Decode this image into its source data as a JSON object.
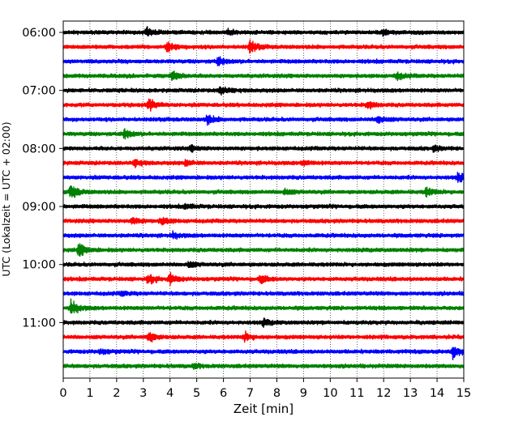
{
  "chart_data": {
    "type": "line",
    "chart_kind": "helicorder",
    "xlabel": "Zeit  [min]",
    "ylabel": "UTC (Lokalzeit = UTC + 02:00)",
    "xlim": [
      0,
      15
    ],
    "x_ticks": [
      "0",
      "1",
      "2",
      "3",
      "4",
      "5",
      "6",
      "7",
      "8",
      "9",
      "10",
      "11",
      "12",
      "13",
      "14",
      "15"
    ],
    "y_tick_labels": [
      "06:00",
      "07:00",
      "08:00",
      "09:00",
      "10:00",
      "11:00"
    ],
    "grid": "vertical dotted lines at each minute",
    "trace_interval_min": 15,
    "trace_colors": [
      "#000000",
      "#ff0000",
      "#0000ff",
      "#008000"
    ],
    "traces": [
      {
        "start": "06:00",
        "color": "#000000",
        "events": [
          {
            "x": 3.15,
            "amp": 1.0
          },
          {
            "x": 6.2,
            "amp": 0.5
          },
          {
            "x": 12.0,
            "amp": 0.6
          }
        ]
      },
      {
        "start": "06:15",
        "color": "#ff0000",
        "events": [
          {
            "x": 3.9,
            "amp": 0.9
          },
          {
            "x": 7.0,
            "amp": 1.2
          }
        ]
      },
      {
        "start": "06:30",
        "color": "#0000ff",
        "events": [
          {
            "x": 5.8,
            "amp": 0.8
          }
        ]
      },
      {
        "start": "06:45",
        "color": "#008000",
        "events": [
          {
            "x": 4.1,
            "amp": 1.1
          },
          {
            "x": 12.5,
            "amp": 0.7
          }
        ]
      },
      {
        "start": "07:00",
        "color": "#000000",
        "events": [
          {
            "x": 5.9,
            "amp": 0.8
          }
        ]
      },
      {
        "start": "07:15",
        "color": "#ff0000",
        "events": [
          {
            "x": 3.2,
            "amp": 1.2
          },
          {
            "x": 11.4,
            "amp": 0.7
          }
        ]
      },
      {
        "start": "07:30",
        "color": "#0000ff",
        "events": [
          {
            "x": 5.4,
            "amp": 0.9
          },
          {
            "x": 11.8,
            "amp": 0.8
          }
        ]
      },
      {
        "start": "07:45",
        "color": "#008000",
        "events": [
          {
            "x": 2.3,
            "amp": 0.9
          }
        ]
      },
      {
        "start": "08:00",
        "color": "#000000",
        "events": [
          {
            "x": 4.8,
            "amp": 0.5
          },
          {
            "x": 13.9,
            "amp": 0.5
          }
        ]
      },
      {
        "start": "08:15",
        "color": "#ff0000",
        "events": [
          {
            "x": 2.7,
            "amp": 0.6
          },
          {
            "x": 4.6,
            "amp": 0.6
          },
          {
            "x": 9.0,
            "amp": 0.5
          }
        ]
      },
      {
        "start": "08:30",
        "color": "#0000ff",
        "events": [
          {
            "x": 14.8,
            "amp": 0.9
          }
        ]
      },
      {
        "start": "08:45",
        "color": "#008000",
        "events": [
          {
            "x": 0.3,
            "amp": 1.4
          },
          {
            "x": 8.3,
            "amp": 0.6
          },
          {
            "x": 13.6,
            "amp": 0.9
          }
        ]
      },
      {
        "start": "09:00",
        "color": "#000000",
        "events": [
          {
            "x": 4.6,
            "amp": 0.5
          }
        ]
      },
      {
        "start": "09:15",
        "color": "#ff0000",
        "events": [
          {
            "x": 2.6,
            "amp": 0.7
          },
          {
            "x": 3.7,
            "amp": 0.8
          }
        ]
      },
      {
        "start": "09:30",
        "color": "#0000ff",
        "events": [
          {
            "x": 4.1,
            "amp": 0.5
          }
        ]
      },
      {
        "start": "09:45",
        "color": "#008000",
        "events": [
          {
            "x": 0.6,
            "amp": 1.3
          }
        ]
      },
      {
        "start": "10:00",
        "color": "#000000",
        "events": [
          {
            "x": 4.7,
            "amp": 0.6
          }
        ]
      },
      {
        "start": "10:15",
        "color": "#ff0000",
        "events": [
          {
            "x": 3.2,
            "amp": 0.9
          },
          {
            "x": 4.0,
            "amp": 1.0
          },
          {
            "x": 7.4,
            "amp": 0.8
          }
        ]
      },
      {
        "start": "10:30",
        "color": "#0000ff",
        "events": [
          {
            "x": 2.2,
            "amp": 0.4
          }
        ]
      },
      {
        "start": "10:45",
        "color": "#008000",
        "events": [
          {
            "x": 0.3,
            "amp": 1.4
          }
        ]
      },
      {
        "start": "11:00",
        "color": "#000000",
        "events": [
          {
            "x": 7.5,
            "amp": 0.6
          }
        ]
      },
      {
        "start": "11:15",
        "color": "#ff0000",
        "events": [
          {
            "x": 3.2,
            "amp": 1.1
          },
          {
            "x": 6.8,
            "amp": 0.8
          }
        ]
      },
      {
        "start": "11:30",
        "color": "#0000ff",
        "events": [
          {
            "x": 1.4,
            "amp": 0.5
          },
          {
            "x": 14.6,
            "amp": 1.4
          }
        ]
      },
      {
        "start": "11:45",
        "color": "#008000",
        "events": [
          {
            "x": 4.9,
            "amp": 0.4
          }
        ]
      }
    ]
  }
}
